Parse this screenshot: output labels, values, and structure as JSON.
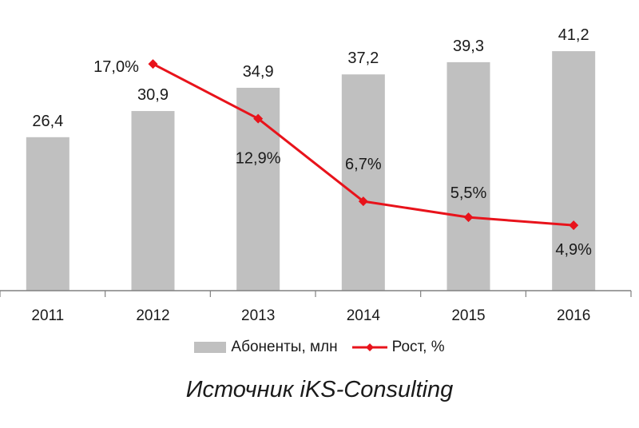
{
  "colors": {
    "bar": "#c0c0c0",
    "line": "#e8131b",
    "axis": "#808080"
  },
  "legend": {
    "bars_label": "Абоненты, млн",
    "line_label": "Рост, %"
  },
  "source": "Источник iKS-Consulting",
  "chart_data": {
    "type": "bar",
    "categories": [
      "2011",
      "2012",
      "2013",
      "2014",
      "2015",
      "2016"
    ],
    "series": [
      {
        "name": "Абоненты, млн",
        "type": "bar",
        "values": [
          26.4,
          30.9,
          34.9,
          37.2,
          39.3,
          41.2
        ],
        "labels": [
          "26,4",
          "30,9",
          "34,9",
          "37,2",
          "39,3",
          "41,2"
        ]
      },
      {
        "name": "Рост, %",
        "type": "line",
        "values": [
          null,
          17.0,
          12.9,
          6.7,
          5.5,
          4.9
        ],
        "labels": [
          "",
          "17,0%",
          "12,9%",
          "6,7%",
          "5,5%",
          "4,9%"
        ]
      }
    ],
    "bar_ylim": [
      0,
      50
    ],
    "line_ylim": [
      0,
      20
    ],
    "grid": false,
    "legend_position": "bottom"
  }
}
